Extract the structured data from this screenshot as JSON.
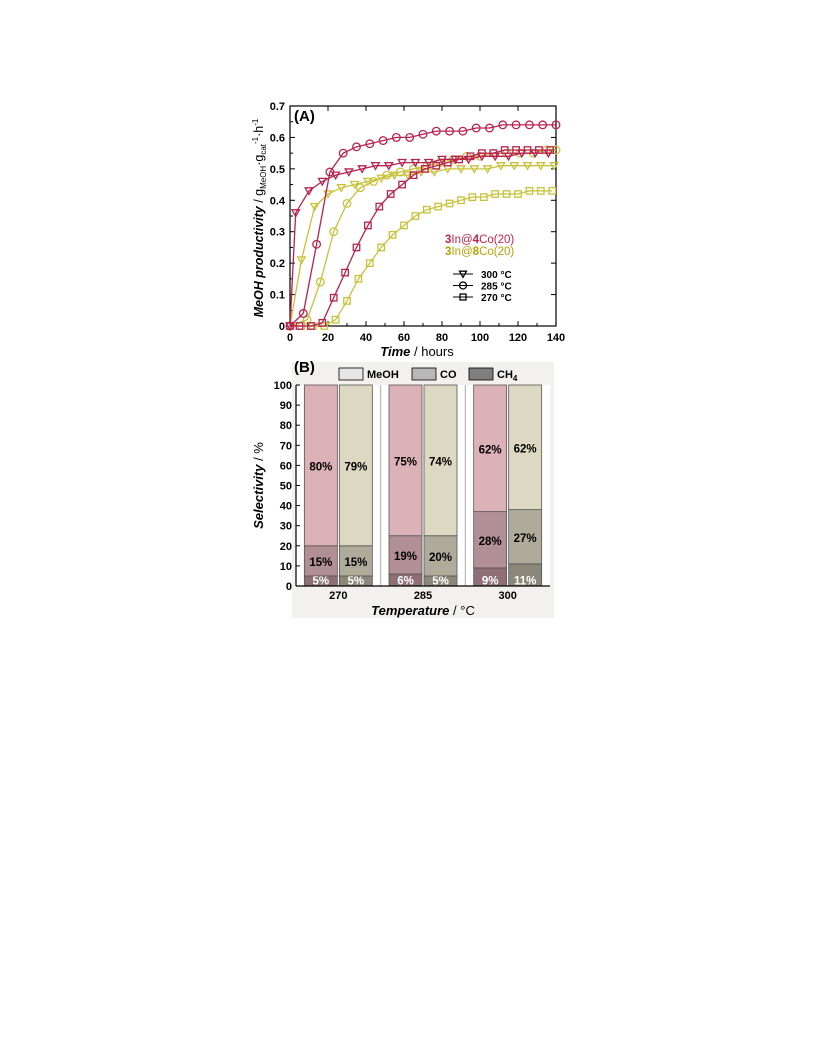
{
  "chart_data": [
    {
      "panel_label": "(A)",
      "type": "line",
      "xlabel": "Time",
      "xlabel_unit": " / hours",
      "ylabel": "MeOH productivity",
      "ylabel_unit_parts": [
        " / g",
        "MeOH",
        "·g",
        "cat",
        "-1",
        "·h",
        "-1"
      ],
      "xlim": [
        0,
        140
      ],
      "ylim": [
        0,
        0.7
      ],
      "x_ticks": [
        0,
        20,
        40,
        60,
        80,
        100,
        120,
        140
      ],
      "y_ticks": [
        0.0,
        0.1,
        0.2,
        0.3,
        0.4,
        0.5,
        0.6,
        0.7
      ],
      "y_tick_labels": [
        "0",
        "0.1",
        "0.2",
        "0.3",
        "0.4",
        "0.5",
        "0.6",
        "0.7"
      ],
      "grid": false,
      "catalysts": [
        {
          "parts": [
            [
              "3",
              true
            ],
            [
              "In@",
              false
            ],
            [
              "4",
              true
            ],
            [
              "Co(20)",
              false
            ]
          ],
          "color": "#c0224a"
        },
        {
          "parts": [
            [
              "3",
              true
            ],
            [
              "In@",
              false
            ],
            [
              "8",
              true
            ],
            [
              "Co(20)",
              false
            ]
          ],
          "color": "#b5a200"
        }
      ],
      "legend_position": "right-middle",
      "markers": [
        {
          "label": "300 °C",
          "marker": "triangle-down"
        },
        {
          "label": "285 °C",
          "marker": "circle"
        },
        {
          "label": "270 °C",
          "marker": "square"
        }
      ],
      "series": [
        {
          "catalyst": 0,
          "temp": "300 °C",
          "marker": "triangle-down",
          "color": "#b8224f",
          "x": [
            0,
            3,
            10,
            17,
            24,
            31,
            38,
            45,
            52,
            59,
            66,
            73,
            80,
            87,
            94,
            101,
            108,
            115,
            122,
            129,
            136
          ],
          "y": [
            0.0,
            0.36,
            0.43,
            0.46,
            0.48,
            0.49,
            0.5,
            0.51,
            0.51,
            0.52,
            0.52,
            0.52,
            0.53,
            0.53,
            0.53,
            0.54,
            0.54,
            0.54,
            0.55,
            0.55,
            0.55
          ]
        },
        {
          "catalyst": 0,
          "temp": "285 °C",
          "marker": "circle",
          "color": "#b8224f",
          "x": [
            0,
            7,
            14,
            21,
            28,
            35,
            42,
            49,
            56,
            63,
            70,
            77,
            84,
            91,
            98,
            105,
            112,
            119,
            126,
            133,
            140
          ],
          "y": [
            0.0,
            0.04,
            0.26,
            0.49,
            0.55,
            0.57,
            0.58,
            0.59,
            0.6,
            0.6,
            0.61,
            0.62,
            0.62,
            0.62,
            0.63,
            0.63,
            0.64,
            0.64,
            0.64,
            0.64,
            0.64
          ]
        },
        {
          "catalyst": 0,
          "temp": "270 °C",
          "marker": "square",
          "color": "#b8224f",
          "x": [
            0,
            5,
            11,
            17,
            23,
            29,
            35,
            41,
            47,
            53,
            59,
            65,
            71,
            77,
            83,
            89,
            95,
            101,
            107,
            113,
            119,
            125,
            131,
            137
          ],
          "y": [
            0.0,
            0.0,
            0.0,
            0.01,
            0.09,
            0.17,
            0.25,
            0.32,
            0.38,
            0.42,
            0.45,
            0.48,
            0.5,
            0.51,
            0.52,
            0.53,
            0.54,
            0.55,
            0.55,
            0.56,
            0.56,
            0.56,
            0.56,
            0.56
          ]
        },
        {
          "catalyst": 1,
          "temp": "300 °C",
          "marker": "triangle-down",
          "color": "#c8c23a",
          "x": [
            0,
            6,
            13,
            20,
            27,
            34,
            41,
            48,
            55,
            62,
            69,
            76,
            83,
            90,
            97,
            104,
            111,
            118,
            125,
            132,
            139
          ],
          "y": [
            0.0,
            0.21,
            0.38,
            0.42,
            0.44,
            0.45,
            0.46,
            0.47,
            0.48,
            0.48,
            0.49,
            0.49,
            0.5,
            0.5,
            0.5,
            0.5,
            0.51,
            0.51,
            0.51,
            0.51,
            0.51
          ]
        },
        {
          "catalyst": 1,
          "temp": "285 °C",
          "marker": "circle",
          "color": "#c8c23a",
          "x": [
            0,
            9,
            16,
            23,
            30,
            37,
            44,
            51,
            58,
            65,
            72,
            79,
            86,
            93,
            100,
            107,
            114,
            121,
            128,
            135,
            140
          ],
          "y": [
            0.0,
            0.02,
            0.14,
            0.3,
            0.39,
            0.44,
            0.46,
            0.48,
            0.49,
            0.5,
            0.51,
            0.52,
            0.53,
            0.54,
            0.54,
            0.55,
            0.55,
            0.55,
            0.55,
            0.56,
            0.56
          ]
        },
        {
          "catalyst": 1,
          "temp": "270 °C",
          "marker": "square",
          "color": "#c8c23a",
          "x": [
            0,
            6,
            12,
            18,
            24,
            30,
            36,
            42,
            48,
            54,
            60,
            66,
            72,
            78,
            84,
            90,
            96,
            102,
            108,
            114,
            120,
            126,
            132,
            138
          ],
          "y": [
            0.0,
            0.0,
            0.0,
            0.0,
            0.02,
            0.08,
            0.15,
            0.2,
            0.25,
            0.29,
            0.32,
            0.35,
            0.37,
            0.38,
            0.39,
            0.4,
            0.41,
            0.41,
            0.42,
            0.42,
            0.42,
            0.43,
            0.43,
            0.43
          ]
        }
      ]
    },
    {
      "panel_label": "(B)",
      "type": "bar",
      "stacked": true,
      "xlabel": "Temperature",
      "xlabel_unit": " / °C",
      "ylabel": "Selectivity",
      "ylabel_unit": " / %",
      "ylim": [
        0,
        100
      ],
      "y_ticks": [
        0,
        10,
        20,
        30,
        40,
        50,
        60,
        70,
        80,
        90,
        100
      ],
      "categories": [
        "270",
        "285",
        "300"
      ],
      "legend_position": "top",
      "legend": [
        {
          "label": "MeOH",
          "color": "#e6e6e6"
        },
        {
          "label": "CO",
          "color": "#b8b8b8"
        },
        {
          "label": "CH",
          "sub": "4",
          "color": "#7f7f7f"
        }
      ],
      "catalyst_colors": [
        {
          "MeOH": "#ddb1b8",
          "CO": "#b28e96",
          "CH4": "#8f6f75"
        },
        {
          "MeOH": "#ddd8c2",
          "CO": "#aeab9b",
          "CH4": "#8b887a"
        }
      ],
      "groups": [
        {
          "category": "270",
          "bars": [
            {
              "catalyst": 0,
              "CH4": 5,
              "CO": 15,
              "MeOH": 80,
              "labels": [
                "5%",
                "15%",
                "80%"
              ]
            },
            {
              "catalyst": 1,
              "CH4": 5,
              "CO": 15,
              "MeOH": 79,
              "labels": [
                "5%",
                "15%",
                "79%"
              ]
            }
          ]
        },
        {
          "category": "285",
          "bars": [
            {
              "catalyst": 0,
              "CH4": 6,
              "CO": 19,
              "MeOH": 75,
              "labels": [
                "6%",
                "19%",
                "75%"
              ]
            },
            {
              "catalyst": 1,
              "CH4": 5,
              "CO": 20,
              "MeOH": 74,
              "labels": [
                "5%",
                "20%",
                "74%"
              ]
            }
          ]
        },
        {
          "category": "300",
          "bars": [
            {
              "catalyst": 0,
              "CH4": 9,
              "CO": 28,
              "MeOH": 62,
              "labels": [
                "9%",
                "28%",
                "62%"
              ]
            },
            {
              "catalyst": 1,
              "CH4": 11,
              "CO": 27,
              "MeOH": 62,
              "labels": [
                "11%",
                "27%",
                "62%"
              ]
            }
          ]
        }
      ]
    }
  ]
}
